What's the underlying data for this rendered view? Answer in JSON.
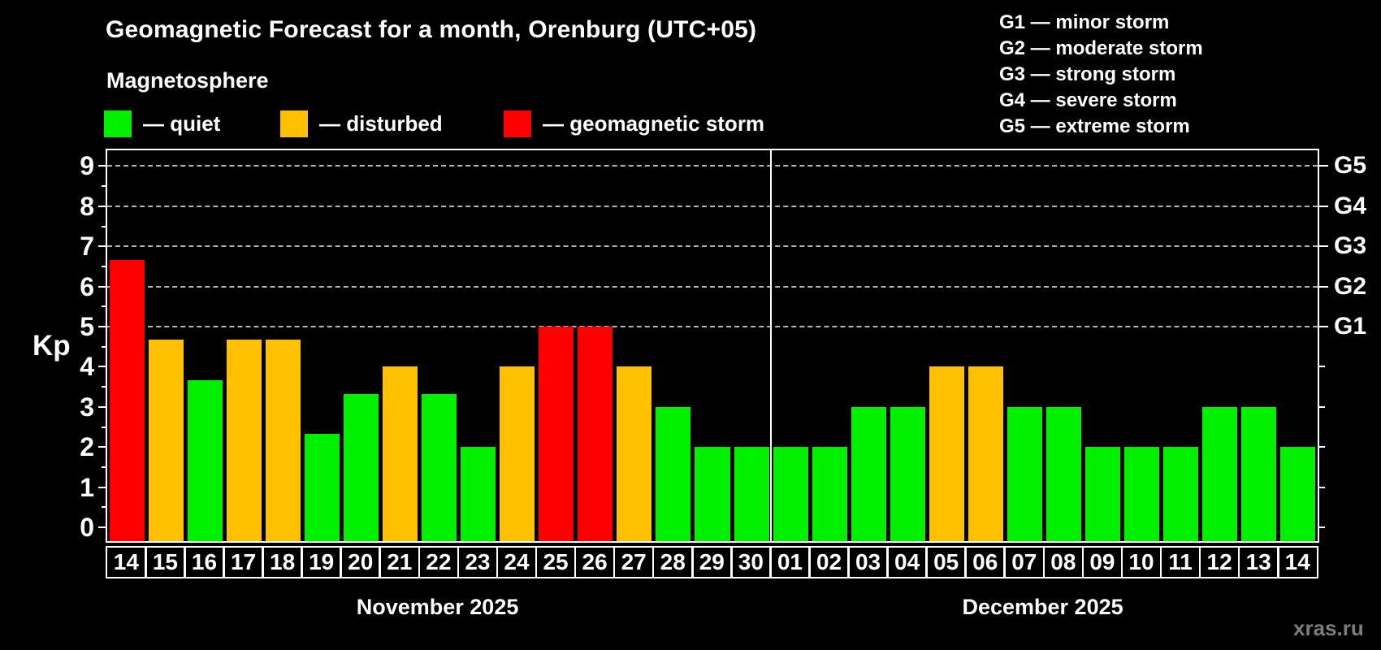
{
  "title": "Geomagnetic Forecast for a month, Orenburg (UTC+05)",
  "subtitle": "Magnetosphere",
  "legend": {
    "items": [
      {
        "key": "quiet",
        "label": "— quiet",
        "color": "#00f000",
        "x": 128
      },
      {
        "key": "disturbed",
        "label": "— disturbed",
        "color": "#ffc000",
        "x": 345
      },
      {
        "key": "storm",
        "label": "— geomagnetic storm",
        "color": "#ff0000",
        "x": 620
      }
    ]
  },
  "g_legend": {
    "items": [
      "G1 — minor storm",
      "G2 — moderate storm",
      "G3 — strong storm",
      "G4 — severe storm",
      "G5 — extreme storm"
    ]
  },
  "ylabel": "Kp",
  "watermark": "xras.ru",
  "chart_data": {
    "type": "bar",
    "title": "Geomagnetic Forecast for a month, Orenburg (UTC+05)",
    "ylabel": "Kp",
    "ylim": [
      0,
      9
    ],
    "yticks": [
      0,
      1,
      2,
      3,
      4,
      5,
      6,
      7,
      8,
      9
    ],
    "grid": "horizontal dashed lines at Kp 5..9 only",
    "legend_position": "top-left",
    "g_levels": [
      {
        "kp": 5,
        "label": "G1"
      },
      {
        "kp": 6,
        "label": "G2"
      },
      {
        "kp": 7,
        "label": "G3"
      },
      {
        "kp": 8,
        "label": "G4"
      },
      {
        "kp": 9,
        "label": "G5"
      }
    ],
    "months": [
      {
        "label": "November 2025",
        "count": 17
      },
      {
        "label": "December 2025",
        "count": 14
      }
    ],
    "categories": [
      "14",
      "15",
      "16",
      "17",
      "18",
      "19",
      "20",
      "21",
      "22",
      "23",
      "24",
      "25",
      "26",
      "27",
      "28",
      "29",
      "30",
      "01",
      "02",
      "03",
      "04",
      "05",
      "06",
      "07",
      "08",
      "09",
      "10",
      "11",
      "12",
      "13",
      "14"
    ],
    "values": [
      6.67,
      4.67,
      3.67,
      4.67,
      4.67,
      2.33,
      3.33,
      4,
      3.33,
      2,
      4,
      5,
      5,
      4,
      3,
      2,
      2,
      2,
      2,
      3,
      3,
      4,
      4,
      3,
      3,
      2,
      2,
      2,
      3,
      3,
      2
    ],
    "statuses": [
      "storm",
      "disturbed",
      "quiet",
      "disturbed",
      "disturbed",
      "quiet",
      "quiet",
      "disturbed",
      "quiet",
      "quiet",
      "disturbed",
      "storm",
      "storm",
      "disturbed",
      "quiet",
      "quiet",
      "quiet",
      "quiet",
      "quiet",
      "quiet",
      "quiet",
      "disturbed",
      "disturbed",
      "quiet",
      "quiet",
      "quiet",
      "quiet",
      "quiet",
      "quiet",
      "quiet",
      "quiet"
    ],
    "colors": {
      "quiet": "#00f000",
      "disturbed": "#ffc000",
      "storm": "#ff0000"
    }
  }
}
